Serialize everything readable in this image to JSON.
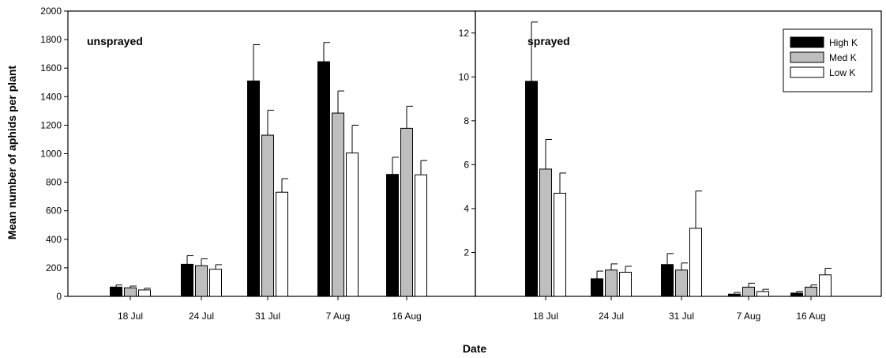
{
  "chart_data": [
    {
      "type": "bar",
      "panel_label": "unsprayed",
      "categories": [
        "18 Jul",
        "24 Jul",
        "31 Jul",
        "7 Aug",
        "16 Aug"
      ],
      "ylabel": "Mean number of aphids per plant",
      "xlabel": "Date",
      "ylim": [
        0,
        2000
      ],
      "yticks": [
        "0",
        "200",
        "400",
        "600",
        "800",
        "1000",
        "1200",
        "1400",
        "1600",
        "1800",
        "2000"
      ],
      "series": [
        {
          "name": "High K",
          "values": [
            65,
            225,
            1510,
            1645,
            855
          ],
          "errors": [
            15,
            60,
            255,
            135,
            120
          ]
        },
        {
          "name": "Med K",
          "values": [
            60,
            215,
            1130,
            1285,
            1178
          ],
          "errors": [
            12,
            48,
            175,
            155,
            155
          ]
        },
        {
          "name": "Low K",
          "values": [
            45,
            190,
            730,
            1005,
            852
          ],
          "errors": [
            12,
            32,
            95,
            195,
            100
          ]
        }
      ]
    },
    {
      "type": "bar",
      "panel_label": "sprayed",
      "categories": [
        "18 Jul",
        "24 Jul",
        "31 Jul",
        "7 Aug",
        "16 Aug"
      ],
      "ylim": [
        0,
        13
      ],
      "yticks": [
        "2",
        "4",
        "6",
        "8",
        "10",
        "12"
      ],
      "legend": "top-right",
      "series": [
        {
          "name": "High K",
          "values": [
            9.8,
            0.8,
            1.45,
            0.1,
            0.15
          ],
          "errors": [
            2.7,
            0.35,
            0.5,
            0.08,
            0.08
          ]
        },
        {
          "name": "Med K",
          "values": [
            5.8,
            1.2,
            1.2,
            0.42,
            0.42
          ],
          "errors": [
            1.35,
            0.28,
            0.32,
            0.18,
            0.1
          ]
        },
        {
          "name": "Low K",
          "values": [
            4.7,
            1.1,
            3.1,
            0.22,
            0.98
          ],
          "errors": [
            0.92,
            0.27,
            1.7,
            0.1,
            0.3
          ]
        }
      ]
    }
  ],
  "colors": {
    "High K": "#000000",
    "Med K": "#bebebe",
    "Low K": "#ffffff"
  }
}
